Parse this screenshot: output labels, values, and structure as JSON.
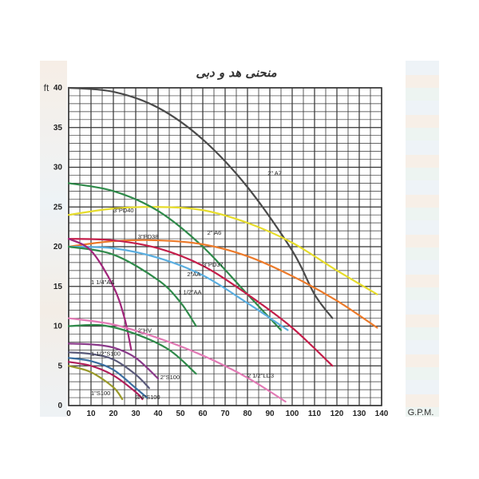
{
  "chart_data": {
    "type": "line",
    "title": "منحنی هد و دبی",
    "xlabel": "G.P.M.",
    "ylabel": "ft",
    "xlim": [
      0,
      140
    ],
    "ylim": [
      0,
      40
    ],
    "xticks": [
      "0",
      "10",
      "20",
      "30",
      "40",
      "50",
      "60",
      "70",
      "80",
      "90",
      "100",
      "110",
      "120",
      "130",
      "140"
    ],
    "yticks": [
      "0",
      "5",
      "10",
      "15",
      "20",
      "25",
      "30",
      "35",
      "40"
    ],
    "grid": true,
    "series": [
      {
        "name": "2\" A7",
        "color": "#4a4a4a",
        "x": [
          0,
          20,
          40,
          60,
          80,
          100,
          110,
          118
        ],
        "y": [
          40,
          39.5,
          37.5,
          33.5,
          27.5,
          19.5,
          14,
          11
        ],
        "label_at": [
          89,
          29
        ]
      },
      {
        "name": "3\"PD40",
        "color": "#e6dc2a",
        "x": [
          0,
          20,
          40,
          60,
          80,
          100,
          120,
          138
        ],
        "y": [
          24,
          24.8,
          25,
          24.6,
          23,
          20.5,
          17,
          14
        ],
        "label_at": [
          20,
          24.3
        ]
      },
      {
        "name": "2\" A6",
        "color": "#2f8a4a",
        "x": [
          0,
          20,
          40,
          60,
          80,
          95
        ],
        "y": [
          28,
          27,
          24.5,
          20,
          14,
          9.5
        ],
        "label_at": [
          62,
          21.5
        ]
      },
      {
        "name": "3\"PD38",
        "color": "#ec7a2a",
        "x": [
          0,
          20,
          40,
          60,
          80,
          100,
          120,
          138
        ],
        "y": [
          20,
          20.7,
          20.8,
          20.3,
          18.8,
          16.3,
          13.2,
          9.8
        ],
        "label_at": [
          31,
          21
        ]
      },
      {
        "name": "3\"PD37",
        "color": "#c41e4a",
        "x": [
          0,
          20,
          40,
          60,
          80,
          100,
          118
        ],
        "y": [
          21,
          20.8,
          19.8,
          17.6,
          14,
          9.8,
          5
        ],
        "label_at": [
          60,
          17.5
        ]
      },
      {
        "name": "2\"AA",
        "color": "#5aaee0",
        "x": [
          0,
          20,
          40,
          60,
          80,
          98
        ],
        "y": [
          20,
          19.8,
          18.6,
          16.4,
          12.9,
          9.5
        ],
        "label_at": [
          53,
          16.3
        ]
      },
      {
        "name": "1 1/2\"AA",
        "color": "#2f8a4a",
        "x": [
          0,
          20,
          40,
          50,
          57
        ],
        "y": [
          20,
          19,
          15.8,
          13,
          10
        ],
        "label_at": [
          49,
          14
        ]
      },
      {
        "name": "1 1/4\"AA",
        "color": "#a0257a",
        "x": [
          0,
          10,
          20,
          25,
          28
        ],
        "y": [
          21,
          19.5,
          15,
          11,
          7
        ],
        "label_at": [
          10,
          15.3
        ]
      },
      {
        "name": "2\"HV",
        "color": "#2f8a4a",
        "x": [
          0,
          15,
          30,
          45,
          57
        ],
        "y": [
          10,
          10.1,
          9,
          7,
          4
        ],
        "label_at": [
          31,
          9.2
        ]
      },
      {
        "name": "2 1/2\"LD3",
        "color": "#e27ab5",
        "x": [
          0,
          20,
          40,
          60,
          80,
          97
        ],
        "y": [
          11,
          10.2,
          8.5,
          6.3,
          3.5,
          0.5
        ],
        "label_at": [
          80,
          3.5
        ]
      },
      {
        "name": "1 1/2\"S100",
        "color": "#8a3a8a",
        "x": [
          0,
          10,
          20,
          30,
          40
        ],
        "y": [
          7.8,
          7.7,
          7.3,
          6,
          3.4
        ],
        "label_at": [
          10,
          6.3
        ]
      },
      {
        "name": "2\"S100",
        "color": "#5a5a7a",
        "x": [
          0,
          10,
          20,
          30,
          36
        ],
        "y": [
          6.7,
          6.5,
          5.8,
          3.9,
          2.2
        ],
        "label_at": [
          41,
          3.3
        ]
      },
      {
        "name": "1\"S100",
        "color": "#3a6ea0",
        "x": [
          0,
          10,
          20,
          30,
          35
        ],
        "y": [
          6,
          5.6,
          4.5,
          2.2,
          1
        ],
        "label_at": [
          10,
          1.3
        ]
      },
      {
        "name": "3/4\"S100",
        "color": "#b01e5a",
        "x": [
          0,
          10,
          20,
          30,
          33
        ],
        "y": [
          5.5,
          5,
          3.8,
          1.7,
          0.8
        ],
        "label_at": [
          30,
          0.8
        ]
      },
      {
        "name": "",
        "color": "#9a9a2a",
        "x": [
          0,
          10,
          20,
          24
        ],
        "y": [
          5,
          4.2,
          2.3,
          0.8
        ],
        "label_at": null
      }
    ]
  }
}
